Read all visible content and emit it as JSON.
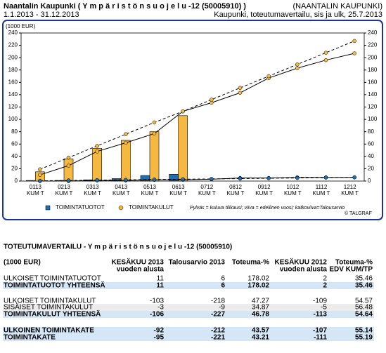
{
  "header": {
    "title": "Naantalin Kaupunki ( Y m p ä r i s t ö n s u o j e l u -12 (50005910) )",
    "org": "(NAANTALIN KAUPUNKI)",
    "period": "1.1.2013 - 31.12.2013",
    "subtitle": "Kaupunki, toteutumavertailu, sis ja ulk, 25.7.2013"
  },
  "chart_data": {
    "type": "bar",
    "unit_label": "(1000 EUR)",
    "categories": [
      "0113",
      "0213",
      "0313",
      "0413",
      "0513",
      "0613",
      "0712",
      "0812",
      "0912",
      "1012",
      "1112",
      "1212"
    ],
    "category_suffix": "KUM T",
    "ylim": [
      0,
      240
    ],
    "yticks": [
      0,
      20,
      40,
      60,
      80,
      100,
      120,
      140,
      160,
      180,
      200,
      220,
      240
    ],
    "y2lim": [
      0,
      240
    ],
    "y2ticks": [
      0,
      20,
      40,
      60,
      80,
      100,
      120,
      140,
      160,
      180,
      200,
      220,
      240
    ],
    "series": [
      {
        "name": "TOIMINTATUOTOT",
        "color": "#1f6fb5",
        "values": [
          1,
          1,
          2,
          4,
          9,
          11,
          null,
          null,
          null,
          null,
          null,
          null
        ]
      },
      {
        "name": "TOIMINTAKULUT",
        "color": "#f5b942",
        "values": [
          15,
          36,
          53,
          66,
          80,
          106,
          null,
          null,
          null,
          null,
          null,
          null
        ]
      },
      {
        "type": "line",
        "color": "#000000",
        "marker": "#1f6fb5",
        "values": [
          0,
          0,
          1,
          1,
          2,
          2,
          3,
          5,
          5,
          6,
          6,
          6
        ]
      },
      {
        "type": "line",
        "color": "#000000",
        "marker": "#f5b942",
        "values": [
          10,
          25,
          48,
          62,
          77,
          113,
          127,
          143,
          167,
          183,
          196,
          207
        ]
      },
      {
        "type": "line",
        "dashed": true,
        "color": "#000000",
        "marker": "#1f6fb5",
        "values": [
          0.5,
          1,
          1.5,
          2,
          2.5,
          3,
          3.5,
          4,
          4.5,
          5,
          5.5,
          6
        ]
      },
      {
        "type": "line",
        "dashed": true,
        "color": "#000000",
        "marker": "#f5b942",
        "values": [
          19,
          38,
          57,
          76,
          95,
          113,
          132,
          151,
          170,
          189,
          208,
          227
        ]
      }
    ],
    "legend_note": "Pylväs = kuluva tilikausi; viiva = edellinen vuosi; katkoviiva=Talousarvio",
    "copyright": "© TALGRAF"
  },
  "table": {
    "title": "TOTEUTUMAVERTAILU - Y m p ä r i s t ö n s u o j e l u -12 (50005910)",
    "columns": [
      [
        "(1000 EUR)"
      ],
      [
        "KESÄKUU 2013",
        "vuoden alusta"
      ],
      [
        "Talousarvio 2013"
      ],
      [
        "Toteuma-%"
      ],
      [
        "KESÄKUU 2012",
        "vuoden alusta"
      ],
      [
        "Toteuma-%",
        "EDV KUM/TP"
      ]
    ],
    "rows": [
      [
        "ULKOISET TOIMINTATUOTOT",
        11,
        6,
        178.02,
        2,
        35.46
      ],
      [
        "TOIMINTATUOTOT YHTEENSÄ",
        11,
        6,
        178.02,
        2,
        35.46
      ],
      [
        "ULKOISET TOIMINTAKULUT",
        -103,
        -218,
        47.27,
        -109,
        54.57
      ],
      [
        "SISÄISET TOIMINTAKULUT",
        -3,
        -9,
        34.87,
        -5,
        56.48
      ],
      [
        "TOIMINTAKULUT YHTEENSÄ",
        -106,
        -227,
        46.78,
        -113,
        54.64
      ],
      [
        "ULKOINEN TOIMINTAKATE",
        -92,
        -212,
        43.57,
        -107,
        55.14
      ],
      [
        "TOIMINTAKATE",
        -95,
        -221,
        43.21,
        -111,
        55.19
      ]
    ]
  }
}
